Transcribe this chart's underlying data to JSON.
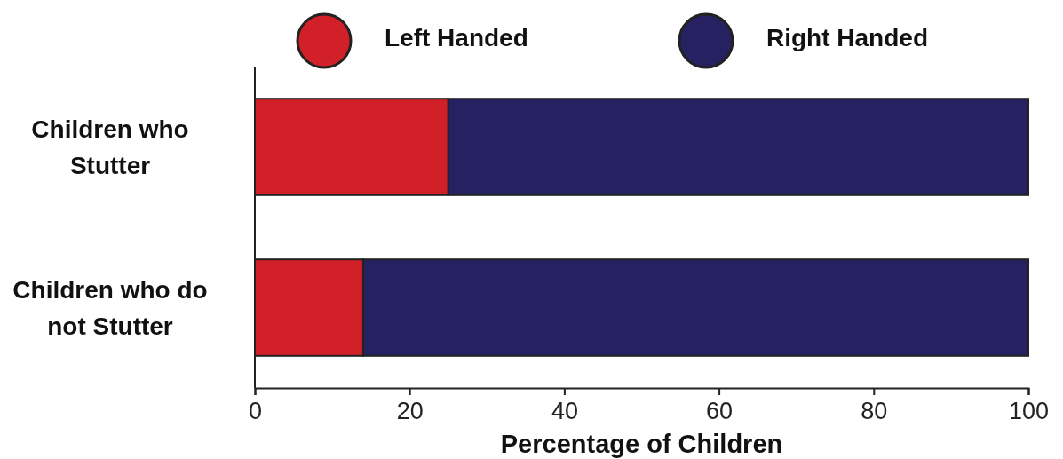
{
  "chart_data": {
    "type": "bar",
    "orientation": "horizontal",
    "stacked": true,
    "xlabel": "Percentage of Children",
    "categories": [
      "Children who Stutter",
      "Children who do not Stutter"
    ],
    "series": [
      {
        "name": "Left Handed",
        "color": "#d12028",
        "values": [
          25,
          14
        ]
      },
      {
        "name": "Right Handed",
        "color": "#262262",
        "values": [
          75,
          86
        ]
      }
    ],
    "xlim": [
      0,
      100
    ],
    "xticks": [
      0,
      20,
      40,
      60,
      80,
      100
    ],
    "grid": false,
    "legend": "top"
  }
}
